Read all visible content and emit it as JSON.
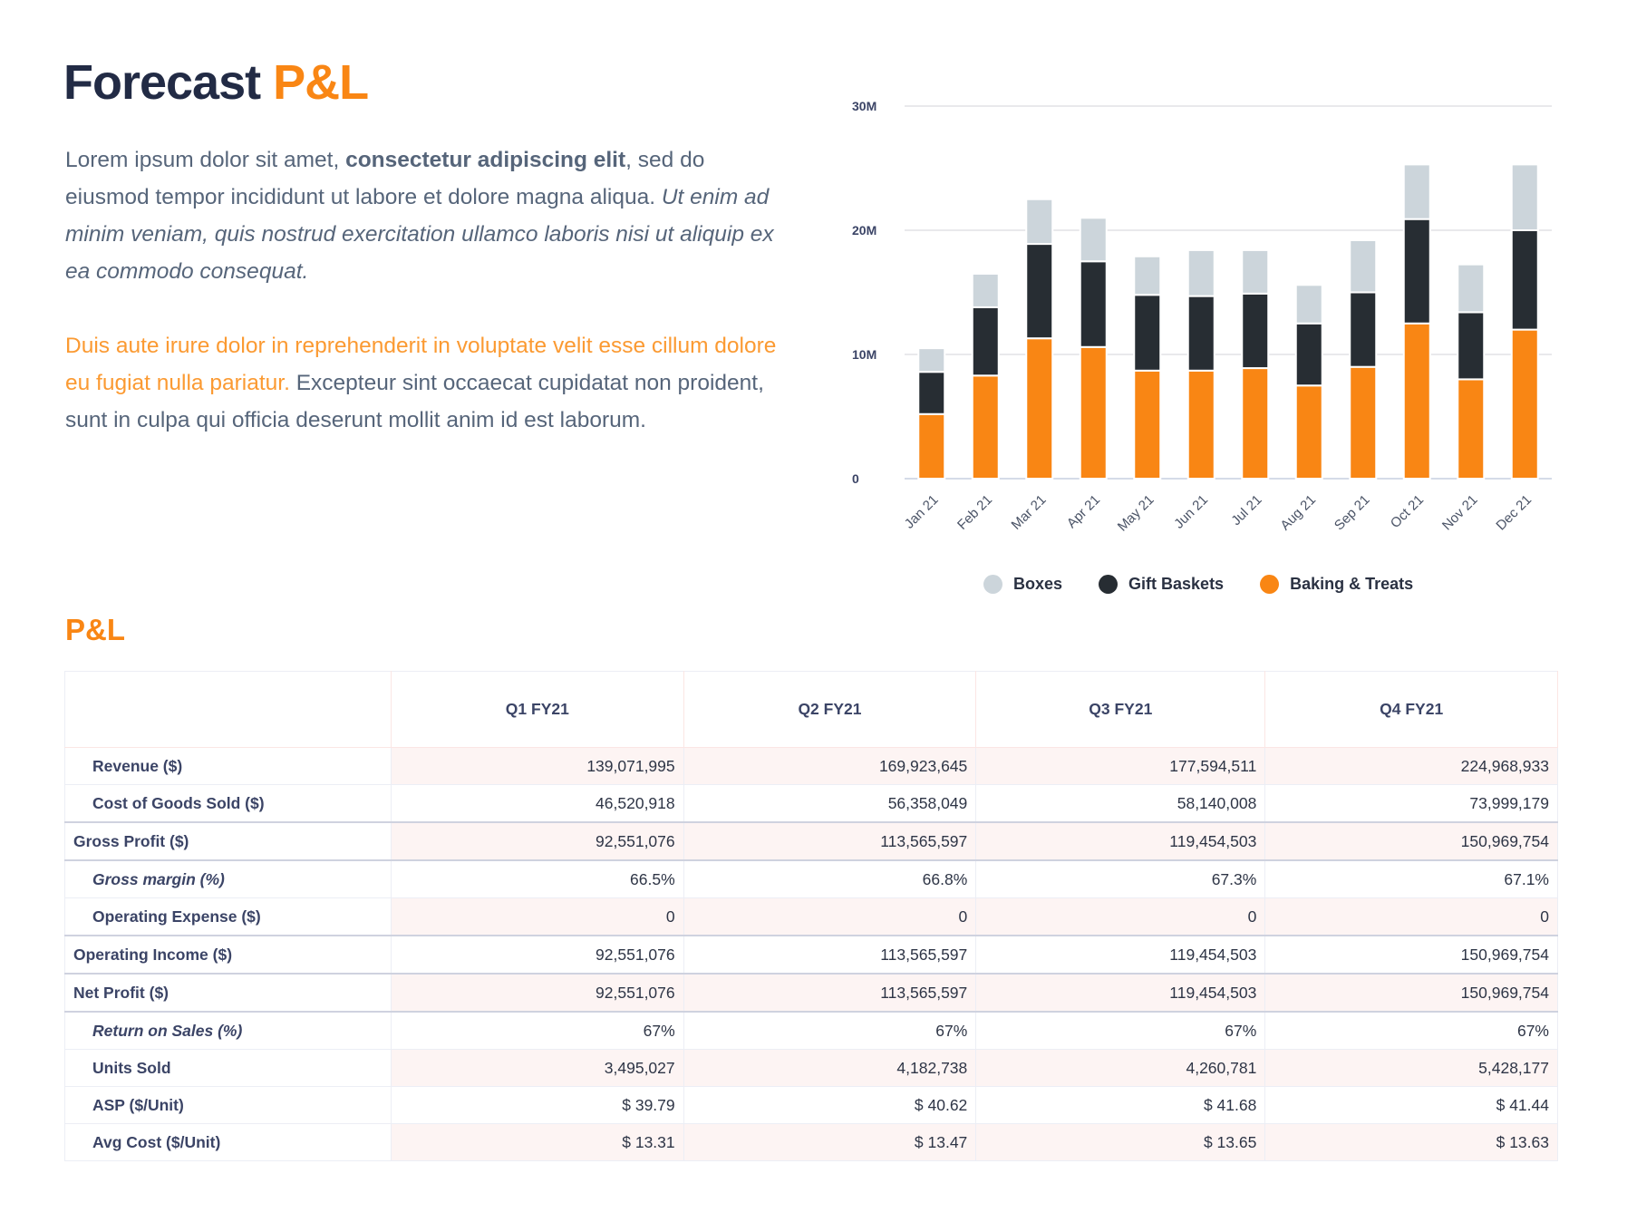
{
  "header": {
    "title_main": "Forecast",
    "title_accent": "P&L"
  },
  "intro": {
    "p1": {
      "a": "Lorem ipsum dolor sit amet, ",
      "bold": "consectetur adipiscing elit",
      "b": ", sed do eiusmod tempor incididunt ut labore et dolore magna aliqua. ",
      "italic": "Ut enim ad minim veniam, quis nostrud exercitation ullamco laboris nisi ut aliquip ex ea commodo consequat."
    },
    "p2": {
      "orange": "Duis aute irure dolor in reprehenderit in voluptate velit esse cillum dolore eu fugiat nulla pariatur.",
      "rest": " Excepteur sint occaecat cupidatat non proident, sunt in culpa qui officia deserunt mollit anim id est laborum."
    }
  },
  "chart_data": {
    "type": "bar",
    "stacked": true,
    "categories": [
      "Jan 21",
      "Feb 21",
      "Mar 21",
      "Apr 21",
      "May 21",
      "Jun 21",
      "Jul 21",
      "Aug 21",
      "Sep 21",
      "Oct 21",
      "Nov 21",
      "Dec 21"
    ],
    "series": [
      {
        "name": "Baking & Treats",
        "color": "#f98614",
        "values": [
          5.2,
          8.3,
          11.3,
          10.6,
          8.7,
          8.7,
          8.9,
          7.5,
          9.0,
          12.5,
          8.0,
          12.0
        ]
      },
      {
        "name": "Gift Baskets",
        "color": "#272d33",
        "values": [
          3.4,
          5.5,
          7.6,
          6.9,
          6.1,
          6.0,
          6.0,
          5.0,
          6.0,
          8.4,
          5.4,
          8.0
        ]
      },
      {
        "name": "Boxes",
        "color": "#ccd5db",
        "values": [
          1.9,
          2.7,
          3.6,
          3.5,
          3.1,
          3.7,
          3.5,
          3.1,
          4.2,
          4.4,
          3.85,
          5.3
        ]
      }
    ],
    "unit": "M",
    "yticks": [
      "0",
      "10M",
      "20M",
      "30M"
    ],
    "ylim": [
      0,
      30
    ],
    "grid": true,
    "legend_order": [
      "Boxes",
      "Gift Baskets",
      "Baking & Treats"
    ],
    "legend_position": "bottom"
  },
  "section_title": "P&L",
  "table": {
    "columns": [
      "",
      "Q1 FY21",
      "Q2 FY21",
      "Q3 FY21",
      "Q4 FY21"
    ],
    "rows": [
      {
        "label": "Revenue ($)",
        "indent": true,
        "values": [
          "139,071,995",
          "169,923,645",
          "177,594,511",
          "224,968,933"
        ]
      },
      {
        "label": "Cost of Goods Sold ($)",
        "indent": true,
        "values": [
          "46,520,918",
          "56,358,049",
          "58,140,008",
          "73,999,179"
        ]
      },
      {
        "label": "Gross Profit ($)",
        "sep": true,
        "values": [
          "92,551,076",
          "113,565,597",
          "119,454,503",
          "150,969,754"
        ]
      },
      {
        "label": "Gross margin (%)",
        "indent": true,
        "italic": true,
        "sep": true,
        "values": [
          "66.5%",
          "66.8%",
          "67.3%",
          "67.1%"
        ]
      },
      {
        "label": "Operating Expense ($)",
        "indent": true,
        "values": [
          "0",
          "0",
          "0",
          "0"
        ]
      },
      {
        "label": "Operating Income ($)",
        "sep": true,
        "values": [
          "92,551,076",
          "113,565,597",
          "119,454,503",
          "150,969,754"
        ]
      },
      {
        "label": "Net Profit ($)",
        "sep": true,
        "values": [
          "92,551,076",
          "113,565,597",
          "119,454,503",
          "150,969,754"
        ]
      },
      {
        "label": "Return on Sales (%)",
        "indent": true,
        "italic": true,
        "sep": true,
        "values": [
          "67%",
          "67%",
          "67%",
          "67%"
        ]
      },
      {
        "label": "Units Sold",
        "indent": true,
        "values": [
          "3,495,027",
          "4,182,738",
          "4,260,781",
          "5,428,177"
        ]
      },
      {
        "label": "ASP ($/Unit)",
        "indent": true,
        "values": [
          "$ 39.79",
          "$ 40.62",
          "$ 41.68",
          "$ 41.44"
        ]
      },
      {
        "label": "Avg Cost ($/Unit)",
        "indent": true,
        "values": [
          "$ 13.31",
          "$ 13.47",
          "$ 13.65",
          "$ 13.63"
        ]
      }
    ]
  }
}
